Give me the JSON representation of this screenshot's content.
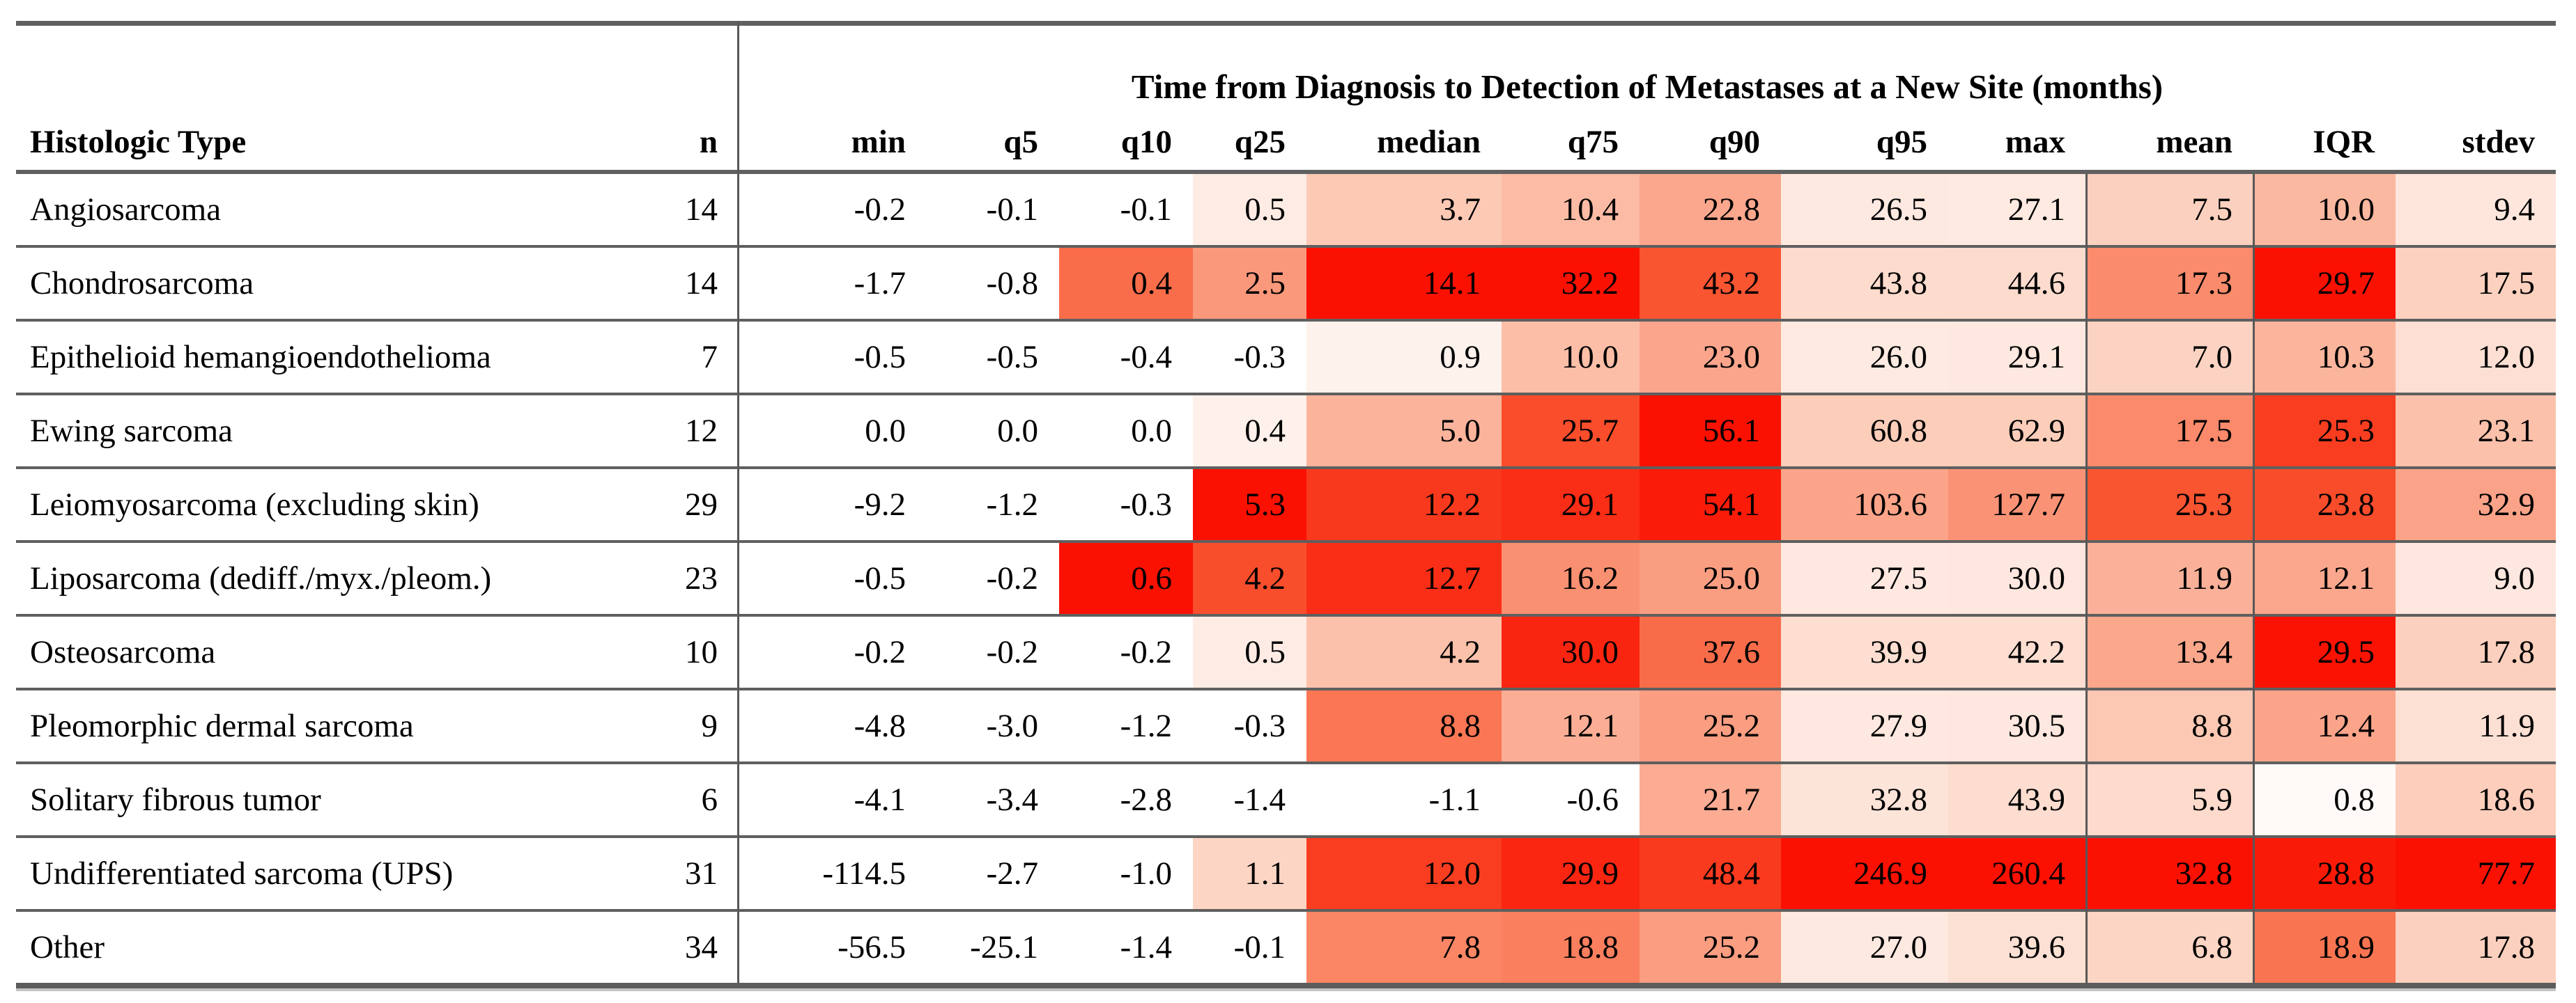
{
  "page": {
    "background": "#ffffff",
    "rule_color": "#606060",
    "text_color": "#000000"
  },
  "chart_data": {
    "type": "heatmap",
    "title": "Time from Diagnosis to Detection of Metastases at a New Site (months)",
    "row_header": "Histologic Type",
    "count_header": "n",
    "stat_columns": [
      "min",
      "q5",
      "q10",
      "q25",
      "median",
      "q75",
      "q90",
      "q95",
      "max",
      "mean",
      "IQR",
      "stdev"
    ],
    "rows": [
      {
        "label": "Angiosarcoma",
        "n": 14,
        "values": [
          -0.2,
          -0.1,
          -0.1,
          0.5,
          3.7,
          10.4,
          22.8,
          26.5,
          27.1,
          7.5,
          10.0,
          9.4
        ]
      },
      {
        "label": "Chondrosarcoma",
        "n": 14,
        "values": [
          -1.7,
          -0.8,
          0.4,
          2.5,
          14.1,
          32.2,
          43.2,
          43.8,
          44.6,
          17.3,
          29.7,
          17.5
        ]
      },
      {
        "label": "Epithelioid hemangioendothelioma",
        "n": 7,
        "values": [
          -0.5,
          -0.5,
          -0.4,
          -0.3,
          0.9,
          10.0,
          23.0,
          26.0,
          29.1,
          7.0,
          10.3,
          12.0
        ]
      },
      {
        "label": "Ewing sarcoma",
        "n": 12,
        "values": [
          0.0,
          0.0,
          0.0,
          0.4,
          5.0,
          25.7,
          56.1,
          60.8,
          62.9,
          17.5,
          25.3,
          23.1
        ]
      },
      {
        "label": "Leiomyosarcoma (excluding skin)",
        "n": 29,
        "values": [
          -9.2,
          -1.2,
          -0.3,
          5.3,
          12.2,
          29.1,
          54.1,
          103.6,
          127.7,
          25.3,
          23.8,
          32.9
        ]
      },
      {
        "label": "Liposarcoma (dediff./myx./pleom.)",
        "n": 23,
        "values": [
          -0.5,
          -0.2,
          0.6,
          4.2,
          12.7,
          16.2,
          25.0,
          27.5,
          30.0,
          11.9,
          12.1,
          9.0
        ]
      },
      {
        "label": "Osteosarcoma",
        "n": 10,
        "values": [
          -0.2,
          -0.2,
          -0.2,
          0.5,
          4.2,
          30.0,
          37.6,
          39.9,
          42.2,
          13.4,
          29.5,
          17.8
        ]
      },
      {
        "label": "Pleomorphic dermal sarcoma",
        "n": 9,
        "values": [
          -4.8,
          -3.0,
          -1.2,
          -0.3,
          8.8,
          12.1,
          25.2,
          27.9,
          30.5,
          8.8,
          12.4,
          11.9
        ]
      },
      {
        "label": "Solitary fibrous tumor",
        "n": 6,
        "values": [
          -4.1,
          -3.4,
          -2.8,
          -1.4,
          -1.1,
          -0.6,
          21.7,
          32.8,
          43.9,
          5.9,
          0.8,
          18.6
        ]
      },
      {
        "label": "Undifferentiated sarcoma (UPS)",
        "n": 31,
        "values": [
          -114.5,
          -2.7,
          -1.0,
          1.1,
          12.0,
          29.9,
          48.4,
          246.9,
          260.4,
          32.8,
          28.8,
          77.7
        ]
      },
      {
        "label": "Other",
        "n": 34,
        "values": [
          -56.5,
          -25.1,
          -1.4,
          -0.1,
          7.8,
          18.8,
          25.2,
          27.0,
          39.6,
          6.8,
          18.9,
          17.8
        ]
      }
    ],
    "heatmap": {
      "normalization": "per column: t = value / column max of positive values; values <= 0 render white",
      "stops": [
        "#ffffff",
        "#fcccb8",
        "#fa9173",
        "#f95b35",
        "#fa1102"
      ],
      "cell_text_color": "#000000"
    },
    "layout": {
      "grid": "off",
      "legend": "none",
      "value_format": "one decimal"
    }
  }
}
